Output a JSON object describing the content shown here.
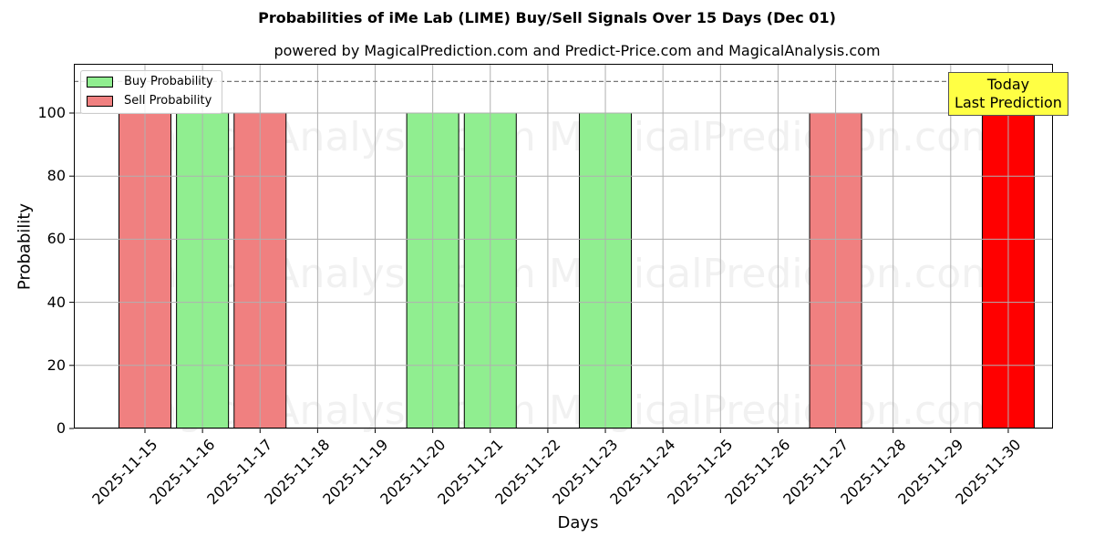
{
  "title": "Probabilities of iMe Lab (LIME) Buy/Sell Signals Over 15 Days (Dec 01)",
  "subtitle": "powered by MagicalPrediction.com and Predict-Price.com and MagicalAnalysis.com",
  "legend": {
    "buy": "Buy Probability",
    "sell": "Sell Probability"
  },
  "annotation": {
    "line1": "Today",
    "line2": "Last Prediction"
  },
  "axes": {
    "xlabel": "Days",
    "ylabel": "Probability"
  },
  "watermarks": [
    "MagicalAnalysis.com",
    "MagicalPrediction.com"
  ],
  "colors": {
    "buy": "#90ee90",
    "sell": "#f08080",
    "today_sell": "#ff0000",
    "annotation_bg": "#ffff44"
  },
  "chart_data": {
    "type": "bar",
    "title": "Probabilities of iMe Lab (LIME) Buy/Sell Signals Over 15 Days (Dec 01)",
    "subtitle": "powered by MagicalPrediction.com and Predict-Price.com and MagicalAnalysis.com",
    "xlabel": "Days",
    "ylabel": "Probability",
    "ylim": [
      0,
      115
    ],
    "yticks": [
      0,
      20,
      40,
      60,
      80,
      100
    ],
    "grid": true,
    "legend_position": "upper left",
    "reference_line": {
      "y": 110,
      "style": "dashed"
    },
    "categories": [
      "2025-11-15",
      "2025-11-16",
      "2025-11-17",
      "2025-11-18",
      "2025-11-19",
      "2025-11-20",
      "2025-11-21",
      "2025-11-22",
      "2025-11-23",
      "2025-11-24",
      "2025-11-25",
      "2025-11-26",
      "2025-11-27",
      "2025-11-28",
      "2025-11-29",
      "2025-11-30"
    ],
    "series": [
      {
        "name": "Buy Probability",
        "values": [
          0,
          100,
          0,
          0,
          0,
          100,
          100,
          0,
          100,
          0,
          0,
          0,
          0,
          0,
          0,
          0
        ]
      },
      {
        "name": "Sell Probability",
        "values": [
          100,
          0,
          100,
          0,
          0,
          0,
          0,
          0,
          0,
          0,
          0,
          0,
          100,
          0,
          0,
          100
        ]
      }
    ],
    "annotations": [
      {
        "text": "Today\nLast Prediction",
        "x": "2025-11-30"
      }
    ]
  }
}
